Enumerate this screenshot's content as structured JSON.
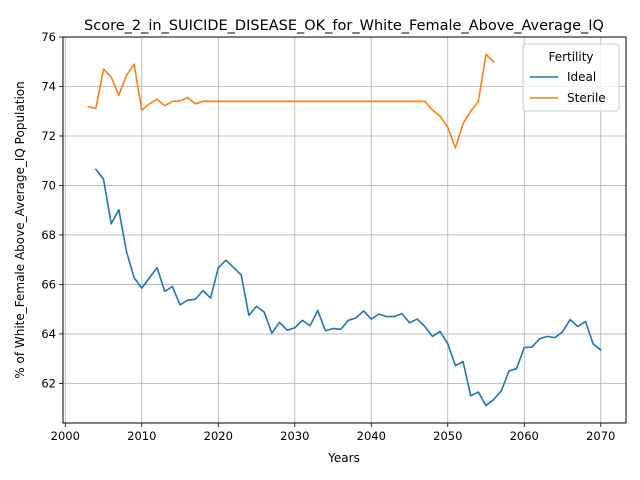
{
  "chart_data": {
    "type": "line",
    "title": "Score_2_in_SUICIDE_DISEASE_OK_for_White_Female_Above_Average_IQ",
    "xlabel": "Years",
    "ylabel": "% of White_Female Above_Average_IQ Population",
    "xlim": [
      1999.7,
      2073.3
    ],
    "ylim": [
      60.4,
      76.0
    ],
    "xticks": [
      2000,
      2010,
      2020,
      2030,
      2040,
      2050,
      2060,
      2070
    ],
    "yticks": [
      62,
      64,
      66,
      68,
      70,
      72,
      74,
      76
    ],
    "grid": true,
    "legend": {
      "title": "Fertility",
      "placement": "top-right"
    },
    "series": [
      {
        "name": "Ideal",
        "color": "#1f77b4",
        "x": [
          2004,
          2005,
          2006,
          2007,
          2008,
          2009,
          2010,
          2011,
          2012,
          2013,
          2014,
          2015,
          2016,
          2017,
          2018,
          2019,
          2020,
          2021,
          2022,
          2023,
          2024,
          2025,
          2026,
          2027,
          2028,
          2029,
          2030,
          2031,
          2032,
          2033,
          2034,
          2035,
          2036,
          2037,
          2038,
          2039,
          2040,
          2041,
          2042,
          2043,
          2044,
          2045,
          2046,
          2047,
          2048,
          2049,
          2050,
          2051,
          2052,
          2053,
          2054,
          2055,
          2056,
          2057,
          2058,
          2059,
          2060,
          2061,
          2062,
          2063,
          2064,
          2065,
          2066,
          2067,
          2068,
          2069,
          2070
        ],
        "y": [
          70.65,
          70.25,
          68.45,
          69.02,
          67.32,
          66.27,
          65.85,
          66.27,
          66.68,
          65.72,
          65.92,
          65.17,
          65.37,
          65.4,
          65.75,
          65.45,
          66.67,
          66.98,
          66.68,
          66.38,
          64.75,
          65.12,
          64.88,
          64.03,
          64.47,
          64.15,
          64.25,
          64.55,
          64.33,
          64.95,
          64.13,
          64.22,
          64.18,
          64.55,
          64.65,
          64.93,
          64.6,
          64.8,
          64.7,
          64.7,
          64.82,
          64.45,
          64.6,
          64.3,
          63.9,
          64.1,
          63.6,
          62.72,
          62.88,
          61.5,
          61.65,
          61.1,
          61.35,
          61.7,
          62.5,
          62.6,
          63.45,
          63.47,
          63.8,
          63.9,
          63.85,
          64.08,
          64.58,
          64.3,
          64.5,
          63.6,
          63.35
        ]
      },
      {
        "name": "Sterile",
        "color": "#ff7f0e",
        "x": [
          2003,
          2004,
          2005,
          2006,
          2007,
          2008,
          2009,
          2010,
          2011,
          2012,
          2013,
          2014,
          2015,
          2016,
          2017,
          2018,
          2019,
          2020,
          2021,
          2022,
          2023,
          2024,
          2025,
          2026,
          2027,
          2028,
          2029,
          2030,
          2031,
          2032,
          2033,
          2034,
          2035,
          2036,
          2037,
          2038,
          2039,
          2040,
          2041,
          2042,
          2043,
          2044,
          2045,
          2046,
          2047,
          2048,
          2049,
          2050,
          2051,
          2052,
          2053,
          2054,
          2055,
          2056
        ],
        "y": [
          73.18,
          73.12,
          74.7,
          74.38,
          73.65,
          74.45,
          74.9,
          73.05,
          73.3,
          73.48,
          73.22,
          73.4,
          73.42,
          73.55,
          73.3,
          73.4,
          73.4,
          73.4,
          73.4,
          73.4,
          73.4,
          73.4,
          73.4,
          73.4,
          73.4,
          73.4,
          73.4,
          73.4,
          73.4,
          73.4,
          73.4,
          73.4,
          73.4,
          73.4,
          73.4,
          73.4,
          73.4,
          73.4,
          73.4,
          73.4,
          73.4,
          73.4,
          73.4,
          73.4,
          73.4,
          73.05,
          72.8,
          72.35,
          71.52,
          72.5,
          73.0,
          73.4,
          75.3,
          75.0
        ]
      }
    ]
  }
}
